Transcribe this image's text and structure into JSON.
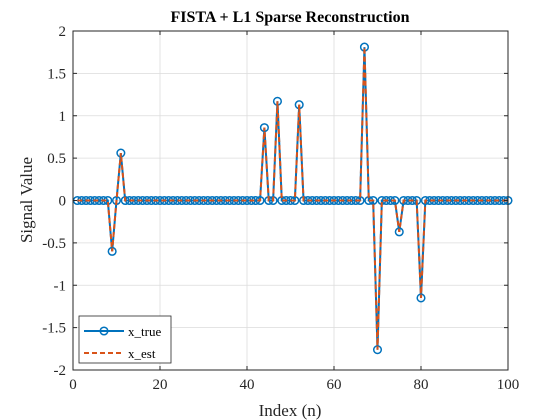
{
  "chart_data": {
    "type": "line",
    "title": "FISTA + L1 Sparse Reconstruction",
    "xlabel": "Index (n)",
    "ylabel": "Signal Value",
    "xlim": [
      0,
      100
    ],
    "ylim": [
      -2,
      2
    ],
    "xticks": [
      0,
      20,
      40,
      60,
      80,
      100
    ],
    "yticks": [
      -2,
      -1.5,
      -1,
      -0.5,
      0,
      0.5,
      1,
      1.5,
      2
    ],
    "ytick_labels": [
      "-2",
      "-1.5",
      "-1",
      "-0.5",
      "0",
      "0.5",
      "1",
      "1.5",
      "2"
    ],
    "grid": true,
    "legend_position": "bottom-left",
    "x": [
      1,
      100
    ],
    "sparse_points": [
      {
        "x": 9,
        "y": -0.6
      },
      {
        "x": 11,
        "y": 0.56
      },
      {
        "x": 44,
        "y": 0.86
      },
      {
        "x": 47,
        "y": 1.17
      },
      {
        "x": 52,
        "y": 1.13
      },
      {
        "x": 67,
        "y": 1.81
      },
      {
        "x": 70,
        "y": -1.76
      },
      {
        "x": 75,
        "y": -0.37
      },
      {
        "x": 80,
        "y": -1.15
      }
    ],
    "series": [
      {
        "name": "x_true",
        "color": "#0072BD",
        "style": "solid",
        "marker": "circle"
      },
      {
        "name": "x_est",
        "color": "#D95319",
        "style": "dashed",
        "marker": "none"
      }
    ]
  }
}
